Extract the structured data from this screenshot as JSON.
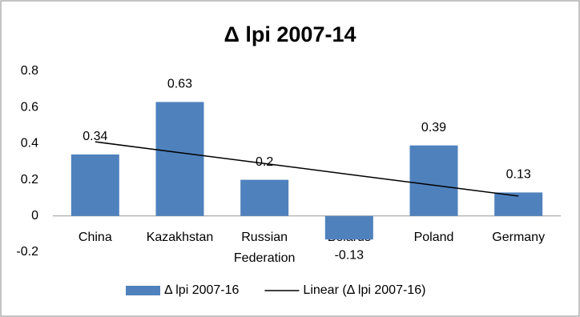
{
  "chart_data": {
    "type": "bar",
    "title": "Δ lpi 2007-14",
    "categories": [
      "China",
      "Kazakhstan",
      "Russian Federation",
      "Belarus",
      "Poland",
      "Germany"
    ],
    "series": [
      {
        "name": "Δ lpi 2007-16",
        "color": "#4f81bd",
        "values": [
          0.34,
          0.63,
          0.2,
          -0.13,
          0.39,
          0.13
        ]
      },
      {
        "name": "Linear (Δ lpi 2007-16)",
        "type": "line",
        "color": "#000000",
        "values": [
          0.41,
          0.35,
          0.29,
          0.23,
          0.17,
          0.11
        ]
      }
    ],
    "ylim": [
      -0.2,
      0.8
    ],
    "yticks": [
      -0.2,
      0,
      0.2,
      0.4,
      0.6,
      0.8
    ],
    "grid": false,
    "legend": "bottom"
  }
}
